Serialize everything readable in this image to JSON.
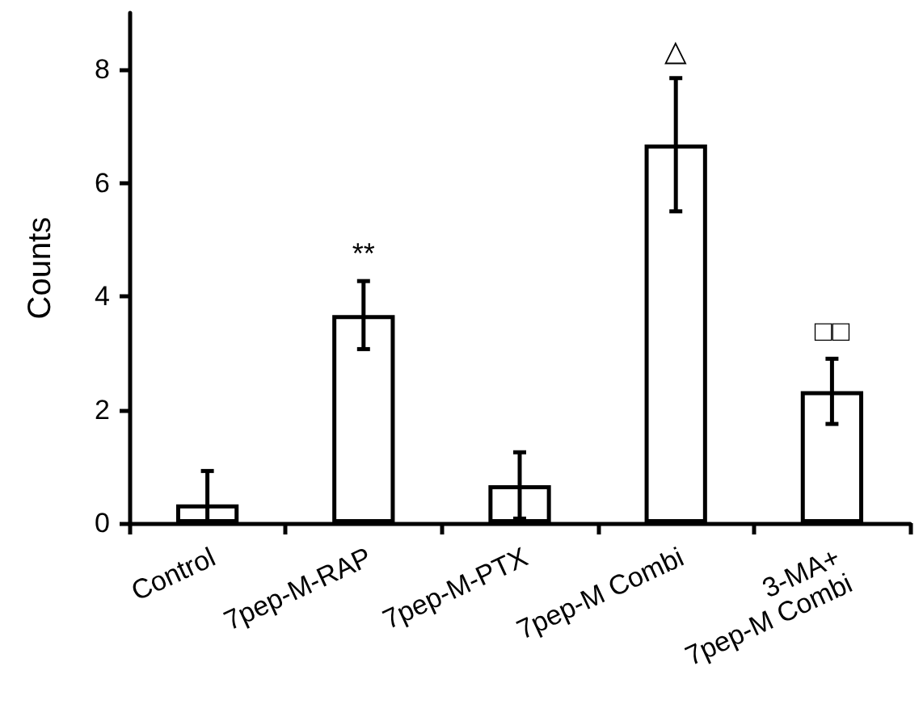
{
  "chart_data": {
    "type": "bar",
    "ylabel": "Counts",
    "categories": [
      "Control",
      "7pep-M-RAP",
      "7pep-M-PTX",
      "7pep-M Combi",
      "3-MA+\n7pep-M Combi"
    ],
    "values": [
      0.33,
      3.67,
      0.67,
      6.68,
      2.33
    ],
    "errors": [
      [
        0,
        0.92
      ],
      [
        3.07,
        4.27
      ],
      [
        0.08,
        1.25
      ],
      [
        5.5,
        7.85
      ],
      [
        1.75,
        2.9
      ]
    ],
    "color": "#ffffff",
    "ylim": [
      0,
      9
    ],
    "yticks": [
      0,
      2,
      4,
      6,
      8
    ],
    "grid": false,
    "annotations": [
      {
        "text": "**",
        "x": "7pep-M-RAP",
        "y": 4.27
      },
      {
        "text": "△",
        "x": "7pep-M Combi",
        "y": 7.85
      },
      {
        "text": "□□",
        "x": "3-MA+\n7pep-M Combi",
        "y": 2.9
      }
    ]
  }
}
